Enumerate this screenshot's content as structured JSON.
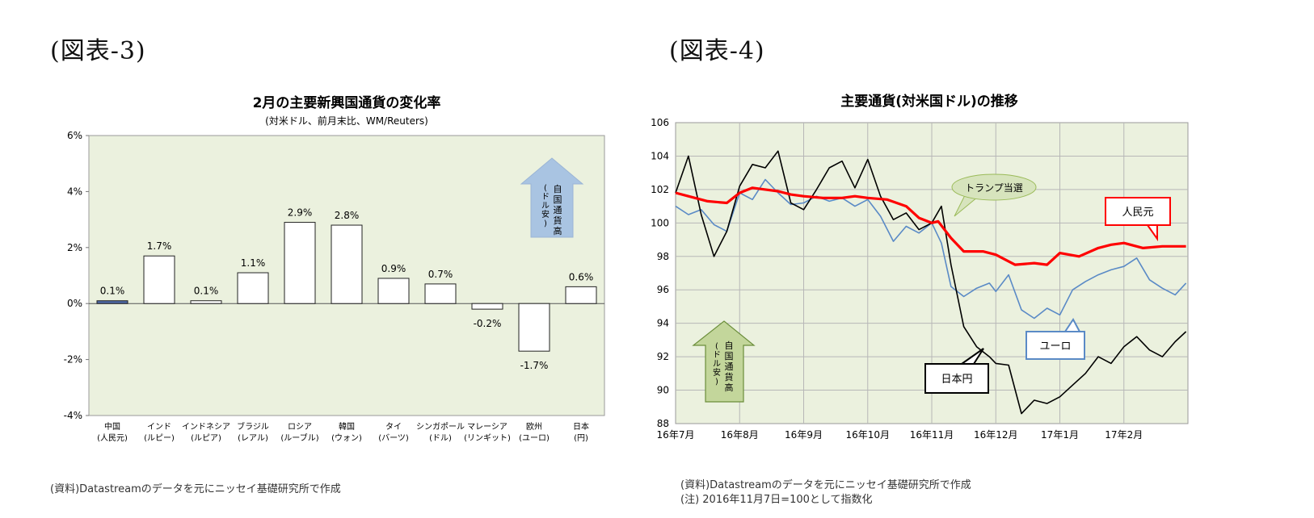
{
  "figure_labels": {
    "left": "(図表-3)",
    "right": "(図表-4)"
  },
  "source_left": "(資料)Datastreamのデータを元にニッセイ基礎研究所で作成",
  "source_right": "(資料)Datastreamのデータを元にニッセイ基礎研究所で作成",
  "note_right": "(注) 2016年11月7日=100として指数化",
  "colors": {
    "plot_bg": "#ebf1de",
    "china_bar": "#4f6aa6",
    "bar_fill": "#ffffff",
    "red": "#ff0000",
    "euro": "#5a8ac6",
    "jpy": "#000000",
    "arrow_blue": "#a9c4e2",
    "arrow_green": "#c3d69b",
    "bubble_green": "#d7e4bd"
  },
  "chart_data": [
    {
      "type": "bar",
      "title": "2月の主要新興国通貨の変化率",
      "subtitle": "(対米ドル、前月末比、WM/Reuters)",
      "categories": [
        [
          "中国",
          "(人民元)"
        ],
        [
          "インド",
          "(ルピー)"
        ],
        [
          "インドネシア",
          "(ルピア)"
        ],
        [
          "ブラジル",
          "(レアル)"
        ],
        [
          "ロシア",
          "(ルーブル)"
        ],
        [
          "韓国",
          "(ウォン)"
        ],
        [
          "タイ",
          "(バーツ)"
        ],
        [
          "シンガポール",
          "(ドル)"
        ],
        [
          "マレーシア",
          "(リンギット)"
        ],
        [
          "欧州",
          "(ユーロ)"
        ],
        [
          "日本",
          "(円)"
        ]
      ],
      "values": [
        0.1,
        1.7,
        0.1,
        1.1,
        2.9,
        2.8,
        0.9,
        0.7,
        -0.2,
        -1.7,
        0.6
      ],
      "data_labels": [
        "0.1%",
        "1.7%",
        "0.1%",
        "1.1%",
        "2.9%",
        "2.8%",
        "0.9%",
        "0.7%",
        "-0.2%",
        "-1.7%",
        "0.6%"
      ],
      "ylim": [
        -4,
        6
      ],
      "yticks": [
        "-4%",
        "-2%",
        "0%",
        "2%",
        "4%",
        "6%"
      ],
      "annotation": "自国通貨高(ドル安)"
    },
    {
      "type": "line",
      "title": "主要通貨(対米国ドル)の推移",
      "ylim": [
        88,
        106
      ],
      "yticks": [
        "88",
        "90",
        "92",
        "94",
        "96",
        "98",
        "100",
        "102",
        "104",
        "106"
      ],
      "xticks": [
        "16年7月",
        "16年8月",
        "16年9月",
        "16年10月",
        "16年11月",
        "16年12月",
        "17年1月",
        "17年2月"
      ],
      "series": [
        {
          "name": "人民元",
          "x": [
            0,
            0.2,
            0.5,
            0.8,
            1,
            1.2,
            1.4,
            1.6,
            1.8,
            2,
            2.3,
            2.6,
            2.8,
            3,
            3.3,
            3.6,
            3.8,
            4,
            4.1,
            4.3,
            4.5,
            4.8,
            5,
            5.3,
            5.6,
            5.8,
            6,
            6.3,
            6.6,
            6.8,
            7,
            7.3,
            7.6,
            7.97
          ],
          "y": [
            101.8,
            101.6,
            101.3,
            101.2,
            101.8,
            102.1,
            102.0,
            101.9,
            101.7,
            101.6,
            101.5,
            101.5,
            101.6,
            101.5,
            101.4,
            101.0,
            100.3,
            100.0,
            100.1,
            99.1,
            98.3,
            98.3,
            98.1,
            97.5,
            97.6,
            97.5,
            98.2,
            98.0,
            98.5,
            98.7,
            98.8,
            98.5,
            98.6,
            98.6
          ]
        },
        {
          "name": "ユーロ",
          "x": [
            0,
            0.2,
            0.4,
            0.6,
            0.8,
            1,
            1.2,
            1.4,
            1.6,
            1.8,
            2,
            2.2,
            2.4,
            2.6,
            2.8,
            3,
            3.2,
            3.4,
            3.6,
            3.8,
            4,
            4.15,
            4.3,
            4.5,
            4.7,
            4.9,
            5,
            5.2,
            5.4,
            5.6,
            5.8,
            6,
            6.2,
            6.4,
            6.6,
            6.8,
            7,
            7.2,
            7.4,
            7.6,
            7.8,
            7.97
          ],
          "y": [
            101.0,
            100.5,
            100.8,
            99.9,
            99.5,
            101.8,
            101.4,
            102.6,
            101.8,
            101.1,
            101.2,
            101.6,
            101.3,
            101.5,
            101.0,
            101.4,
            100.4,
            98.9,
            99.8,
            99.4,
            100.0,
            98.8,
            96.2,
            95.6,
            96.1,
            96.4,
            95.9,
            96.9,
            94.8,
            94.3,
            94.9,
            94.5,
            96.0,
            96.5,
            96.9,
            97.2,
            97.4,
            97.9,
            96.6,
            96.1,
            95.7,
            96.4
          ]
        },
        {
          "name": "日本円",
          "x": [
            0,
            0.2,
            0.4,
            0.6,
            0.8,
            1,
            1.2,
            1.4,
            1.6,
            1.8,
            2,
            2.2,
            2.4,
            2.6,
            2.8,
            3,
            3.2,
            3.4,
            3.6,
            3.8,
            4,
            4.15,
            4.3,
            4.5,
            4.7,
            4.9,
            5,
            5.2,
            5.4,
            5.6,
            5.8,
            6,
            6.2,
            6.4,
            6.6,
            6.8,
            7,
            7.2,
            7.4,
            7.6,
            7.8,
            7.97
          ],
          "y": [
            101.8,
            104.0,
            100.5,
            98.0,
            99.5,
            102.2,
            103.5,
            103.3,
            104.3,
            101.2,
            100.8,
            102.0,
            103.3,
            103.7,
            102.1,
            103.8,
            101.6,
            100.2,
            100.6,
            99.6,
            100.0,
            101.0,
            97.5,
            93.8,
            92.6,
            92.0,
            91.6,
            91.5,
            88.6,
            89.4,
            89.2,
            89.6,
            90.3,
            91.0,
            92.0,
            91.6,
            92.6,
            93.2,
            92.4,
            92.0,
            92.9,
            93.5
          ]
        }
      ],
      "callouts": {
        "trump": "トランプ当選",
        "annotation": "自国通貨高(ドル安)"
      }
    }
  ]
}
